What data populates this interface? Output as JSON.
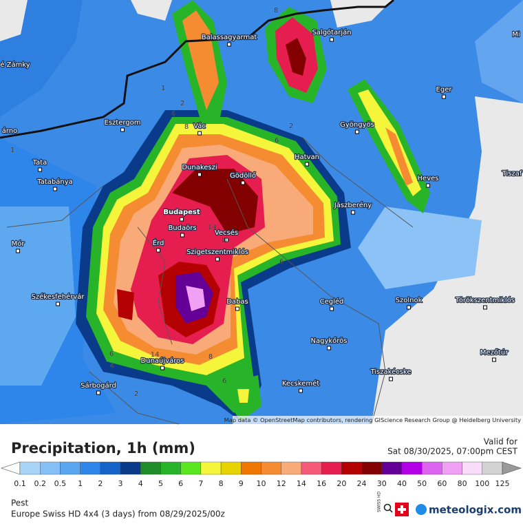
{
  "attribution": "Map data © OpenStreetMap contributors, rendering GIScience Research Group @ Heidelberg University",
  "cities": [
    "é Zámky",
    "árno",
    "Mi",
    "Tiszaf",
    "Balassagyarmat",
    "Salgótarján",
    "Eger",
    "Esztergom",
    "Vác",
    "Gyöngyös",
    "Tata",
    "Dunakeszi",
    "Gödöllő",
    "Hatvan",
    "Tatabánya",
    "Heves",
    "Jászberény",
    "Budapest",
    "Budaörs",
    "Vecsés",
    "Mór",
    "Érd",
    "Szigetszentmiklós",
    "Székesfehérvár",
    "Cegléd",
    "Szolnok",
    "Törökszentmiklós",
    "Dabas",
    "Nagykőrös",
    "Mezőtúr",
    "Dunaújváros",
    "Tiszakécske",
    "Kecskemét",
    "Sárbogárd"
  ],
  "contour_labels": [
    "8",
    "2",
    "1",
    "2",
    "4",
    "8",
    "6",
    "14",
    "10",
    "6",
    "6",
    "4",
    "14",
    "8",
    "6",
    "2",
    "1"
  ],
  "legend": {
    "title": "Precipitation, 1h (mm)",
    "labels": [
      0.1,
      0.2,
      0.5,
      1,
      2,
      3,
      4,
      5,
      6,
      7,
      8,
      9,
      10,
      12,
      14,
      16,
      20,
      24,
      30,
      40,
      50,
      60,
      80,
      100,
      125
    ],
    "colors": [
      "#ffffff",
      "#a8d4f8",
      "#84c0f5",
      "#5aa6f0",
      "#2f86ea",
      "#1463c8",
      "#0a3a8a",
      "#1e8c28",
      "#28b428",
      "#5ae61e",
      "#f5f53c",
      "#e6d200",
      "#f07800",
      "#f58c32",
      "#f8aa78",
      "#f55a78",
      "#e61e50",
      "#b40000",
      "#820000",
      "#640096",
      "#b400e6",
      "#dc64f0",
      "#f0a0f5",
      "#f8dcfa",
      "#d2d2d2",
      "#999999"
    ]
  },
  "valid": {
    "label": "Valid for",
    "time": "Sat 08/30/2025, 07:00pm CEST"
  },
  "footer": {
    "region": "Pest",
    "model": "Europe Swiss HD 4x4 (3 days) from  08/29/2025/00z",
    "badge": "SWISS HD",
    "logo": "meteologix.com"
  }
}
